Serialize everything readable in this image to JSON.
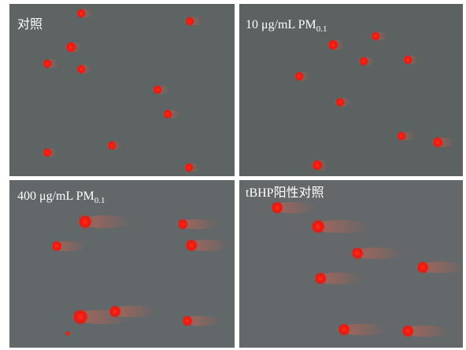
{
  "panels": [
    {
      "label": "对照"
    },
    {
      "label": "10 μg/mL PM",
      "subscript": "0.1"
    },
    {
      "label": "400 μg/mL PM",
      "subscript": "0.1"
    },
    {
      "label": "tBHP阳性对照"
    }
  ]
}
